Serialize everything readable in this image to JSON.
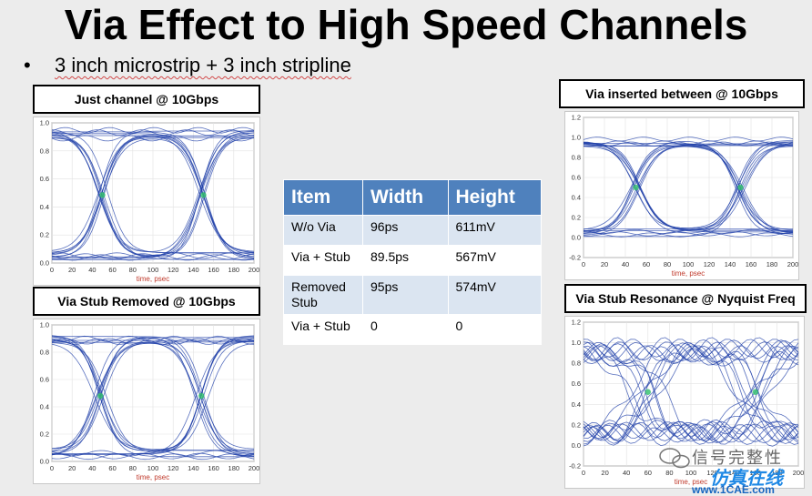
{
  "slide": {
    "title": "Via Effect to High Speed Channels",
    "bullet_marker": "•",
    "bullet_text": "3 inch microstrip + 3 inch stripline"
  },
  "panels": [
    {
      "id": "p1",
      "label": "Just channel @ 10Gbps",
      "xlabel": "time, psec",
      "x_ticks": [
        "0",
        "20",
        "40",
        "60",
        "80",
        "100",
        "120",
        "140",
        "160",
        "180",
        "200"
      ],
      "y_ticks": [
        "0.0",
        "0.2",
        "0.4",
        "0.6",
        "0.8",
        "1.0"
      ],
      "eye": {
        "ymin": 0.0,
        "ymax": 1.0,
        "low": 0.05,
        "high": 0.92,
        "cross1": 50,
        "cross2": 150,
        "jitter": 6
      }
    },
    {
      "id": "p2",
      "label": "Via Stub Removed @ 10Gbps",
      "xlabel": "time, psec",
      "x_ticks": [
        "0",
        "20",
        "40",
        "60",
        "80",
        "100",
        "120",
        "140",
        "160",
        "180",
        "200"
      ],
      "y_ticks": [
        "0.0",
        "0.2",
        "0.4",
        "0.6",
        "0.8",
        "1.0"
      ],
      "eye": {
        "ymin": 0.0,
        "ymax": 1.0,
        "low": 0.06,
        "high": 0.9,
        "cross1": 48,
        "cross2": 148,
        "jitter": 7
      }
    },
    {
      "id": "p3",
      "label": "Via inserted between @ 10Gbps",
      "xlabel": "time, psec",
      "x_ticks": [
        "0",
        "20",
        "40",
        "60",
        "80",
        "100",
        "120",
        "140",
        "160",
        "180",
        "200"
      ],
      "y_ticks": [
        "-0.2",
        "0.0",
        "0.2",
        "0.4",
        "0.6",
        "0.8",
        "1.0",
        "1.2"
      ],
      "eye": {
        "ymin": -0.2,
        "ymax": 1.2,
        "low": 0.05,
        "high": 0.95,
        "cross1": 50,
        "cross2": 150,
        "jitter": 5
      }
    },
    {
      "id": "p4",
      "label": "Via Stub Resonance @ Nyquist Freq",
      "xlabel": "time, psec",
      "x_ticks": [
        "0",
        "20",
        "40",
        "60",
        "80",
        "100",
        "120",
        "140",
        "160",
        "180",
        "200"
      ],
      "y_ticks": [
        "-0.2",
        "0.0",
        "0.2",
        "0.4",
        "0.6",
        "0.8",
        "1.0",
        "1.2"
      ],
      "eye": {
        "ymin": -0.2,
        "ymax": 1.2,
        "low": 0.12,
        "high": 0.92,
        "cross1": 60,
        "cross2": 160,
        "jitter": 18
      }
    }
  ],
  "table": {
    "headers": [
      "Item",
      "Width",
      "Height"
    ],
    "rows": [
      [
        "W/o Via",
        "96ps",
        "611mV"
      ],
      [
        "Via + Stub",
        "89.5ps",
        "567mV"
      ],
      [
        "Removed Stub",
        "95ps",
        "574mV"
      ],
      [
        "Via + Stub",
        "0",
        "0"
      ]
    ]
  },
  "watermark": {
    "cn_text": "信号完整性",
    "site_text": "仿真在线",
    "url": "www.1CAE.com"
  },
  "colors": {
    "table_header": "#4f81bd",
    "table_odd_row": "#dbe5f1",
    "eye_trace": "#1f3fa8",
    "eye_hot": "#2fbf6a",
    "axis_label": "#c0392b"
  }
}
